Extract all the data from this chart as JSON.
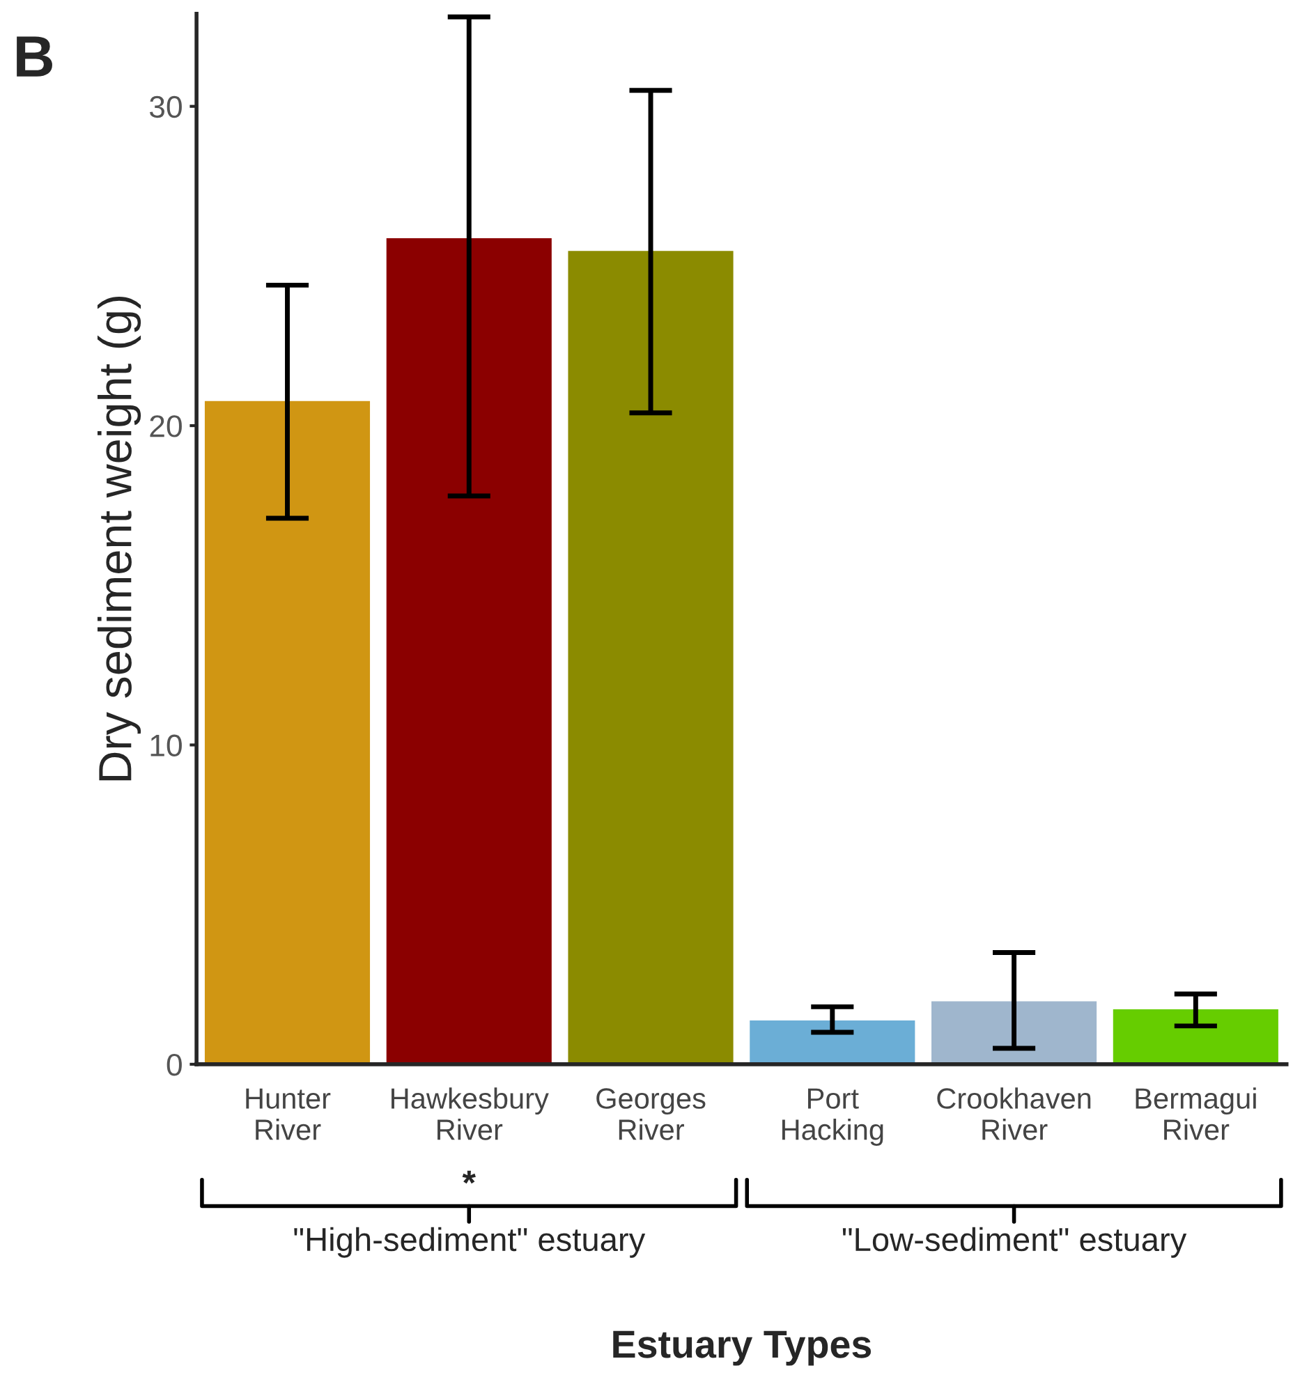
{
  "chart_data": {
    "type": "bar",
    "xlabel": "Estuary Types",
    "ylabel": "Dry sediment weight (g)",
    "categories": [
      "Hunter\nRiver",
      "Hawkesbury\nRiver",
      "Georges\nRiver",
      "Port\nHacking",
      "Crookhaven\nRiver",
      "Bermagui\nRiver"
    ],
    "values": [
      20.8,
      25.9,
      25.5,
      1.4,
      2.0,
      1.75
    ],
    "colors": [
      "#d09613",
      "#8b0000",
      "#8b8b00",
      "#6baed6",
      "#9fb6cd",
      "#66cd00"
    ],
    "errors": [
      [
        17.1,
        24.4
      ],
      [
        17.8,
        32.8
      ],
      [
        20.4,
        30.5
      ],
      [
        1.0,
        1.8
      ],
      [
        0.5,
        3.5
      ],
      [
        1.2,
        2.2
      ]
    ],
    "ylim": [
      0,
      32.9
    ],
    "yticks": [
      0,
      10,
      20,
      30
    ],
    "grid": false,
    "annotations": [
      "B",
      "*",
      "\"High-sediment\" estuary",
      "\"Low-sediment\" estuary"
    ]
  }
}
